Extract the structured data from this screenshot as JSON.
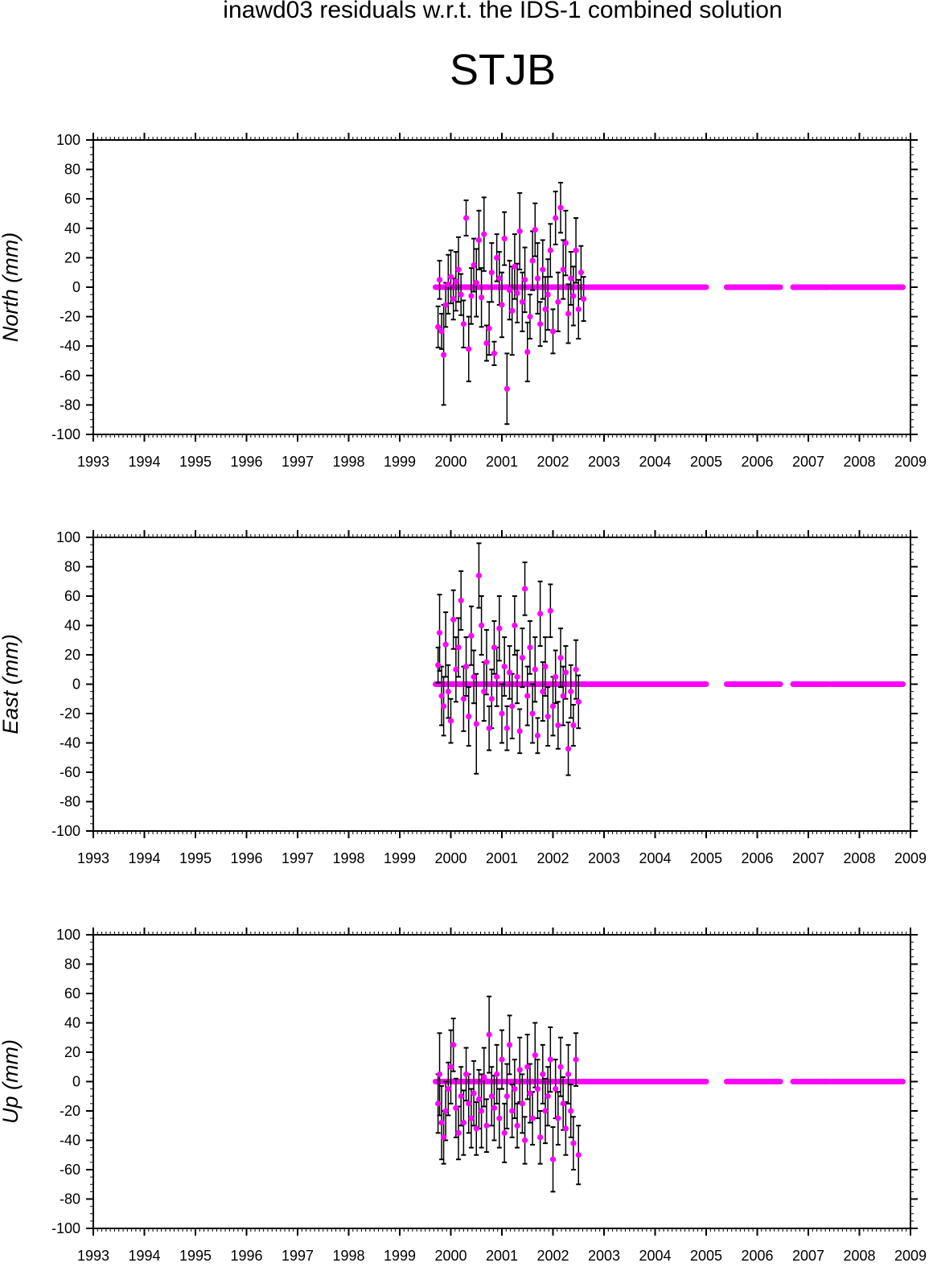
{
  "header": {
    "title": "inawd03 residuals w.r.t. the IDS-1 combined solution",
    "station": "STJB"
  },
  "colors": {
    "points": "#ff00ff",
    "error_bars": "#000000",
    "axes": "#000000"
  },
  "chart_data": [
    {
      "type": "scatter",
      "ylabel": "North (mm)",
      "xlim": [
        1993,
        2009
      ],
      "ylim": [
        -100,
        100
      ],
      "xticks": [
        "1993",
        "1994",
        "1995",
        "1996",
        "1997",
        "1998",
        "1999",
        "2000",
        "2001",
        "2002",
        "2003",
        "2004",
        "2005",
        "2006",
        "2007",
        "2008",
        "2009"
      ],
      "yticks": [
        "100",
        "80",
        "60",
        "40",
        "20",
        "0",
        "-20",
        "-40",
        "-60",
        "-80",
        "-100"
      ],
      "series": [
        {
          "points": [
            [
              1999.75,
              -27,
              14
            ],
            [
              1999.78,
              5,
              13
            ],
            [
              1999.82,
              -30,
              12
            ],
            [
              1999.86,
              -46,
              34
            ],
            [
              1999.9,
              -12,
              15
            ],
            [
              1999.95,
              2,
              20
            ],
            [
              2000.0,
              7,
              18
            ],
            [
              2000.05,
              -8,
              14
            ],
            [
              2000.1,
              4,
              20
            ],
            [
              2000.15,
              12,
              22
            ],
            [
              2000.2,
              -5,
              14
            ],
            [
              2000.25,
              -25,
              16
            ],
            [
              2000.3,
              47,
              12
            ],
            [
              2000.35,
              -42,
              22
            ],
            [
              2000.4,
              -6,
              19
            ],
            [
              2000.45,
              15,
              18
            ],
            [
              2000.5,
              3,
              23
            ],
            [
              2000.55,
              32,
              20
            ],
            [
              2000.6,
              -7,
              20
            ],
            [
              2000.65,
              36,
              25
            ],
            [
              2000.7,
              -38,
              12
            ],
            [
              2000.75,
              -28,
              18
            ],
            [
              2000.8,
              10,
              20
            ],
            [
              2000.85,
              -45,
              8
            ],
            [
              2000.9,
              20,
              16
            ],
            [
              2000.95,
              6,
              18
            ],
            [
              2001.0,
              -12,
              22
            ],
            [
              2001.05,
              33,
              18
            ],
            [
              2001.1,
              -69,
              24
            ],
            [
              2001.15,
              -2,
              20
            ],
            [
              2001.2,
              -16,
              30
            ],
            [
              2001.25,
              14,
              22
            ],
            [
              2001.3,
              -4,
              20
            ],
            [
              2001.35,
              38,
              26
            ],
            [
              2001.4,
              -10,
              20
            ],
            [
              2001.45,
              5,
              22
            ],
            [
              2001.5,
              -44,
              20
            ],
            [
              2001.55,
              -20,
              15
            ],
            [
              2001.6,
              18,
              20
            ],
            [
              2001.65,
              39,
              18
            ],
            [
              2001.7,
              6,
              24
            ],
            [
              2001.75,
              -25,
              15
            ],
            [
              2001.8,
              12,
              20
            ],
            [
              2001.85,
              -15,
              22
            ],
            [
              2001.9,
              -5,
              24
            ],
            [
              2001.95,
              25,
              18
            ],
            [
              2002.0,
              -30,
              15
            ],
            [
              2002.05,
              47,
              18
            ],
            [
              2002.1,
              -10,
              20
            ],
            [
              2002.15,
              54,
              17
            ],
            [
              2002.2,
              12,
              20
            ],
            [
              2002.25,
              30,
              22
            ],
            [
              2002.3,
              -18,
              20
            ],
            [
              2002.35,
              6,
              18
            ],
            [
              2002.4,
              -6,
              20
            ],
            [
              2002.45,
              25,
              22
            ],
            [
              2002.5,
              -15,
              20
            ],
            [
              2002.55,
              10,
              18
            ],
            [
              2002.6,
              -8,
              15
            ]
          ],
          "zero_segments": [
            [
              1999.7,
              2002.65
            ],
            [
              2002.7,
              2005.0
            ],
            [
              2005.4,
              2006.45
            ],
            [
              2006.7,
              2007.4
            ],
            [
              2007.45,
              2008.85
            ]
          ]
        }
      ]
    },
    {
      "type": "scatter",
      "ylabel": "East (mm)",
      "xlim": [
        1993,
        2009
      ],
      "ylim": [
        -100,
        100
      ],
      "xticks": [
        "1993",
        "1994",
        "1995",
        "1996",
        "1997",
        "1998",
        "1999",
        "2000",
        "2001",
        "2002",
        "2003",
        "2004",
        "2005",
        "2006",
        "2007",
        "2008",
        "2009"
      ],
      "yticks": [
        "100",
        "80",
        "60",
        "40",
        "20",
        "0",
        "-20",
        "-40",
        "-60",
        "-80",
        "-100"
      ],
      "series": [
        {
          "points": [
            [
              1999.75,
              13,
              12
            ],
            [
              1999.78,
              35,
              26
            ],
            [
              1999.82,
              -8,
              20
            ],
            [
              1999.86,
              -15,
              20
            ],
            [
              1999.9,
              27,
              22
            ],
            [
              1999.95,
              -5,
              18
            ],
            [
              2000.0,
              -25,
              15
            ],
            [
              2000.05,
              44,
              20
            ],
            [
              2000.1,
              10,
              22
            ],
            [
              2000.15,
              25,
              20
            ],
            [
              2000.2,
              57,
              20
            ],
            [
              2000.25,
              -10,
              22
            ],
            [
              2000.3,
              12,
              20
            ],
            [
              2000.35,
              -22,
              20
            ],
            [
              2000.4,
              33,
              20
            ],
            [
              2000.45,
              5,
              18
            ],
            [
              2000.5,
              -27,
              34
            ],
            [
              2000.55,
              74,
              22
            ],
            [
              2000.6,
              40,
              20
            ],
            [
              2000.65,
              -5,
              20
            ],
            [
              2000.7,
              15,
              22
            ],
            [
              2000.75,
              -30,
              15
            ],
            [
              2000.8,
              -10,
              20
            ],
            [
              2000.85,
              25,
              18
            ],
            [
              2000.9,
              5,
              20
            ],
            [
              2000.95,
              38,
              22
            ],
            [
              2001.0,
              -20,
              20
            ],
            [
              2001.05,
              12,
              20
            ],
            [
              2001.1,
              -30,
              15
            ],
            [
              2001.15,
              8,
              18
            ],
            [
              2001.2,
              -15,
              22
            ],
            [
              2001.25,
              40,
              20
            ],
            [
              2001.3,
              5,
              18
            ],
            [
              2001.35,
              -32,
              15
            ],
            [
              2001.4,
              18,
              20
            ],
            [
              2001.45,
              65,
              18
            ],
            [
              2001.5,
              -8,
              20
            ],
            [
              2001.55,
              25,
              18
            ],
            [
              2001.6,
              -20,
              20
            ],
            [
              2001.65,
              10,
              22
            ],
            [
              2001.7,
              -35,
              12
            ],
            [
              2001.75,
              48,
              22
            ],
            [
              2001.8,
              -5,
              20
            ],
            [
              2001.85,
              12,
              20
            ],
            [
              2001.9,
              -22,
              20
            ],
            [
              2001.95,
              50,
              18
            ],
            [
              2002.0,
              -15,
              20
            ],
            [
              2002.05,
              5,
              18
            ],
            [
              2002.1,
              -28,
              16
            ],
            [
              2002.15,
              18,
              20
            ],
            [
              2002.2,
              -8,
              20
            ],
            [
              2002.25,
              8,
              18
            ],
            [
              2002.3,
              -44,
              18
            ],
            [
              2002.35,
              -5,
              18
            ],
            [
              2002.4,
              -28,
              14
            ],
            [
              2002.45,
              10,
              20
            ],
            [
              2002.5,
              -12,
              18
            ]
          ],
          "zero_segments": [
            [
              1999.7,
              2002.65
            ],
            [
              2002.7,
              2005.0
            ],
            [
              2005.4,
              2006.45
            ],
            [
              2006.7,
              2007.4
            ],
            [
              2007.45,
              2008.85
            ]
          ]
        }
      ]
    },
    {
      "type": "scatter",
      "ylabel": "Up (mm)",
      "xlim": [
        1993,
        2009
      ],
      "ylim": [
        -100,
        100
      ],
      "xticks": [
        "1993",
        "1994",
        "1995",
        "1996",
        "1997",
        "1998",
        "1999",
        "2000",
        "2001",
        "2002",
        "2003",
        "2004",
        "2005",
        "2006",
        "2007",
        "2008",
        "2009"
      ],
      "yticks": [
        "100",
        "80",
        "60",
        "40",
        "20",
        "0",
        "-20",
        "-40",
        "-60",
        "-80",
        "-100"
      ],
      "series": [
        {
          "points": [
            [
              1999.75,
              -15,
              20
            ],
            [
              1999.78,
              5,
              28
            ],
            [
              1999.82,
              -28,
              25
            ],
            [
              1999.86,
              -38,
              18
            ],
            [
              1999.9,
              -20,
              20
            ],
            [
              1999.95,
              -5,
              18
            ],
            [
              2000.0,
              10,
              25
            ],
            [
              2000.05,
              25,
              18
            ],
            [
              2000.1,
              -18,
              20
            ],
            [
              2000.15,
              -35,
              18
            ],
            [
              2000.2,
              -10,
              20
            ],
            [
              2000.25,
              -28,
              22
            ],
            [
              2000.3,
              5,
              18
            ],
            [
              2000.35,
              -15,
              20
            ],
            [
              2000.4,
              -25,
              20
            ],
            [
              2000.45,
              -8,
              22
            ],
            [
              2000.5,
              -32,
              18
            ],
            [
              2000.55,
              -12,
              20
            ],
            [
              2000.6,
              -20,
              25
            ],
            [
              2000.65,
              3,
              20
            ],
            [
              2000.7,
              -30,
              18
            ],
            [
              2000.75,
              32,
              26
            ],
            [
              2000.8,
              -10,
              20
            ],
            [
              2000.85,
              -18,
              22
            ],
            [
              2000.9,
              5,
              20
            ],
            [
              2000.95,
              -25,
              20
            ],
            [
              2001.0,
              15,
              20
            ],
            [
              2001.05,
              -35,
              20
            ],
            [
              2001.1,
              -10,
              22
            ],
            [
              2001.15,
              25,
              20
            ],
            [
              2001.2,
              -20,
              18
            ],
            [
              2001.25,
              -5,
              20
            ],
            [
              2001.3,
              -30,
              15
            ],
            [
              2001.35,
              8,
              22
            ],
            [
              2001.4,
              -15,
              20
            ],
            [
              2001.45,
              -40,
              16
            ],
            [
              2001.5,
              10,
              22
            ],
            [
              2001.55,
              -8,
              20
            ],
            [
              2001.6,
              -25,
              18
            ],
            [
              2001.65,
              18,
              22
            ],
            [
              2001.7,
              -5,
              20
            ],
            [
              2001.75,
              -38,
              18
            ],
            [
              2001.8,
              5,
              20
            ],
            [
              2001.85,
              -20,
              22
            ],
            [
              2001.9,
              -10,
              20
            ],
            [
              2001.95,
              15,
              22
            ],
            [
              2002.0,
              -53,
              22
            ],
            [
              2002.05,
              -5,
              20
            ],
            [
              2002.1,
              -25,
              18
            ],
            [
              2002.15,
              10,
              20
            ],
            [
              2002.2,
              -15,
              18
            ],
            [
              2002.25,
              -32,
              18
            ],
            [
              2002.3,
              5,
              20
            ],
            [
              2002.35,
              -20,
              18
            ],
            [
              2002.4,
              -42,
              18
            ],
            [
              2002.45,
              15,
              18
            ],
            [
              2002.5,
              -50,
              20
            ]
          ],
          "zero_segments": [
            [
              1999.7,
              2002.65
            ],
            [
              2002.7,
              2005.0
            ],
            [
              2005.4,
              2006.45
            ],
            [
              2006.7,
              2007.4
            ],
            [
              2007.45,
              2008.85
            ]
          ]
        }
      ]
    }
  ]
}
